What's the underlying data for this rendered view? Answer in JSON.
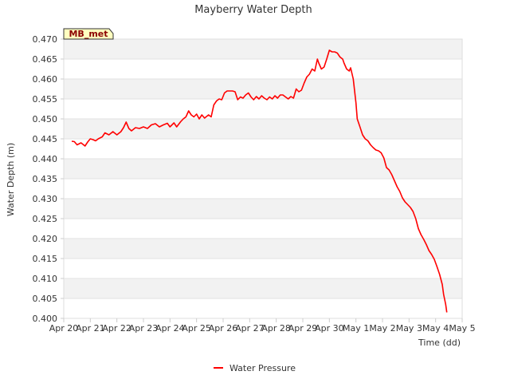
{
  "chart_data": {
    "type": "line",
    "title": "Mayberry Water Depth",
    "xlabel": "Time (dd)",
    "ylabel": "Water Depth (m)",
    "badge": "MB_met",
    "xlim": [
      0,
      15
    ],
    "ylim": [
      0.4,
      0.47
    ],
    "x_ticks": [
      {
        "v": 0,
        "label": "Apr 20"
      },
      {
        "v": 1,
        "label": "Apr 21"
      },
      {
        "v": 2,
        "label": "Apr 22"
      },
      {
        "v": 3,
        "label": "Apr 23"
      },
      {
        "v": 4,
        "label": "Apr 24"
      },
      {
        "v": 5,
        "label": "Apr 25"
      },
      {
        "v": 6,
        "label": "Apr 26"
      },
      {
        "v": 7,
        "label": "Apr 27"
      },
      {
        "v": 8,
        "label": "Apr 28"
      },
      {
        "v": 9,
        "label": "Apr 29"
      },
      {
        "v": 10,
        "label": "Apr 30"
      },
      {
        "v": 11,
        "label": "May 1"
      },
      {
        "v": 12,
        "label": "May 2"
      },
      {
        "v": 13,
        "label": "May 3"
      },
      {
        "v": 14,
        "label": "May 4"
      },
      {
        "v": 15,
        "label": "May 5"
      }
    ],
    "y_ticks": [
      "0.400",
      "0.405",
      "0.410",
      "0.415",
      "0.420",
      "0.425",
      "0.430",
      "0.435",
      "0.440",
      "0.445",
      "0.450",
      "0.455",
      "0.460",
      "0.465",
      "0.470"
    ],
    "grid": true,
    "legend_position": "bottom-center",
    "series": [
      {
        "name": "Water Pressure",
        "color": "#ff0000",
        "points": [
          [
            0.3,
            0.4444
          ],
          [
            0.4,
            0.4443
          ],
          [
            0.5,
            0.4435
          ],
          [
            0.65,
            0.444
          ],
          [
            0.8,
            0.4432
          ],
          [
            0.9,
            0.4442
          ],
          [
            1.0,
            0.445
          ],
          [
            1.1,
            0.4448
          ],
          [
            1.2,
            0.4445
          ],
          [
            1.3,
            0.445
          ],
          [
            1.45,
            0.4455
          ],
          [
            1.55,
            0.4465
          ],
          [
            1.7,
            0.446
          ],
          [
            1.85,
            0.4468
          ],
          [
            2.0,
            0.446
          ],
          [
            2.15,
            0.4468
          ],
          [
            2.25,
            0.4478
          ],
          [
            2.35,
            0.4492
          ],
          [
            2.45,
            0.4476
          ],
          [
            2.55,
            0.447
          ],
          [
            2.7,
            0.4478
          ],
          [
            2.85,
            0.4476
          ],
          [
            3.0,
            0.448
          ],
          [
            3.15,
            0.4476
          ],
          [
            3.3,
            0.4485
          ],
          [
            3.45,
            0.4488
          ],
          [
            3.6,
            0.448
          ],
          [
            3.75,
            0.4485
          ],
          [
            3.9,
            0.4489
          ],
          [
            4.0,
            0.448
          ],
          [
            4.15,
            0.449
          ],
          [
            4.25,
            0.448
          ],
          [
            4.4,
            0.4493
          ],
          [
            4.5,
            0.45
          ],
          [
            4.6,
            0.4505
          ],
          [
            4.7,
            0.452
          ],
          [
            4.8,
            0.451
          ],
          [
            4.9,
            0.4505
          ],
          [
            5.0,
            0.4512
          ],
          [
            5.1,
            0.45
          ],
          [
            5.2,
            0.451
          ],
          [
            5.3,
            0.4502
          ],
          [
            5.45,
            0.451
          ],
          [
            5.55,
            0.4505
          ],
          [
            5.65,
            0.4535
          ],
          [
            5.75,
            0.4545
          ],
          [
            5.85,
            0.455
          ],
          [
            5.95,
            0.4548
          ],
          [
            6.05,
            0.4565
          ],
          [
            6.15,
            0.457
          ],
          [
            6.25,
            0.457
          ],
          [
            6.35,
            0.457
          ],
          [
            6.45,
            0.4568
          ],
          [
            6.55,
            0.4548
          ],
          [
            6.65,
            0.4555
          ],
          [
            6.75,
            0.4552
          ],
          [
            6.85,
            0.456
          ],
          [
            6.95,
            0.4565
          ],
          [
            7.05,
            0.4555
          ],
          [
            7.15,
            0.4548
          ],
          [
            7.25,
            0.4556
          ],
          [
            7.35,
            0.455
          ],
          [
            7.45,
            0.4558
          ],
          [
            7.55,
            0.4552
          ],
          [
            7.65,
            0.4548
          ],
          [
            7.75,
            0.4555
          ],
          [
            7.85,
            0.455
          ],
          [
            7.95,
            0.4558
          ],
          [
            8.05,
            0.4552
          ],
          [
            8.15,
            0.456
          ],
          [
            8.25,
            0.456
          ],
          [
            8.35,
            0.4555
          ],
          [
            8.45,
            0.455
          ],
          [
            8.55,
            0.4556
          ],
          [
            8.65,
            0.4552
          ],
          [
            8.75,
            0.4575
          ],
          [
            8.85,
            0.4568
          ],
          [
            8.95,
            0.4572
          ],
          [
            9.05,
            0.459
          ],
          [
            9.15,
            0.4605
          ],
          [
            9.25,
            0.4612
          ],
          [
            9.35,
            0.4625
          ],
          [
            9.45,
            0.462
          ],
          [
            9.55,
            0.465
          ],
          [
            9.6,
            0.464
          ],
          [
            9.7,
            0.4625
          ],
          [
            9.8,
            0.463
          ],
          [
            9.9,
            0.465
          ],
          [
            10.0,
            0.4672
          ],
          [
            10.1,
            0.4668
          ],
          [
            10.2,
            0.4668
          ],
          [
            10.3,
            0.4665
          ],
          [
            10.4,
            0.4655
          ],
          [
            10.5,
            0.465
          ],
          [
            10.55,
            0.464
          ],
          [
            10.65,
            0.4625
          ],
          [
            10.75,
            0.462
          ],
          [
            10.8,
            0.4628
          ],
          [
            10.9,
            0.46
          ],
          [
            11.0,
            0.454
          ],
          [
            11.05,
            0.45
          ],
          [
            11.15,
            0.448
          ],
          [
            11.25,
            0.446
          ],
          [
            11.35,
            0.445
          ],
          [
            11.45,
            0.4445
          ],
          [
            11.55,
            0.4435
          ],
          [
            11.65,
            0.4428
          ],
          [
            11.75,
            0.4422
          ],
          [
            11.85,
            0.442
          ],
          [
            11.95,
            0.4415
          ],
          [
            12.05,
            0.4402
          ],
          [
            12.15,
            0.4378
          ],
          [
            12.25,
            0.4372
          ],
          [
            12.35,
            0.436
          ],
          [
            12.45,
            0.4345
          ],
          [
            12.55,
            0.433
          ],
          [
            12.65,
            0.4318
          ],
          [
            12.75,
            0.4302
          ],
          [
            12.85,
            0.4292
          ],
          [
            12.95,
            0.4285
          ],
          [
            13.05,
            0.4278
          ],
          [
            13.15,
            0.4268
          ],
          [
            13.25,
            0.425
          ],
          [
            13.35,
            0.4225
          ],
          [
            13.45,
            0.421
          ],
          [
            13.55,
            0.4198
          ],
          [
            13.65,
            0.4185
          ],
          [
            13.75,
            0.417
          ],
          [
            13.85,
            0.416
          ],
          [
            13.95,
            0.4148
          ],
          [
            14.05,
            0.413
          ],
          [
            14.15,
            0.411
          ],
          [
            14.25,
            0.4085
          ],
          [
            14.3,
            0.406
          ],
          [
            14.38,
            0.4035
          ],
          [
            14.42,
            0.4015
          ]
        ]
      }
    ]
  }
}
